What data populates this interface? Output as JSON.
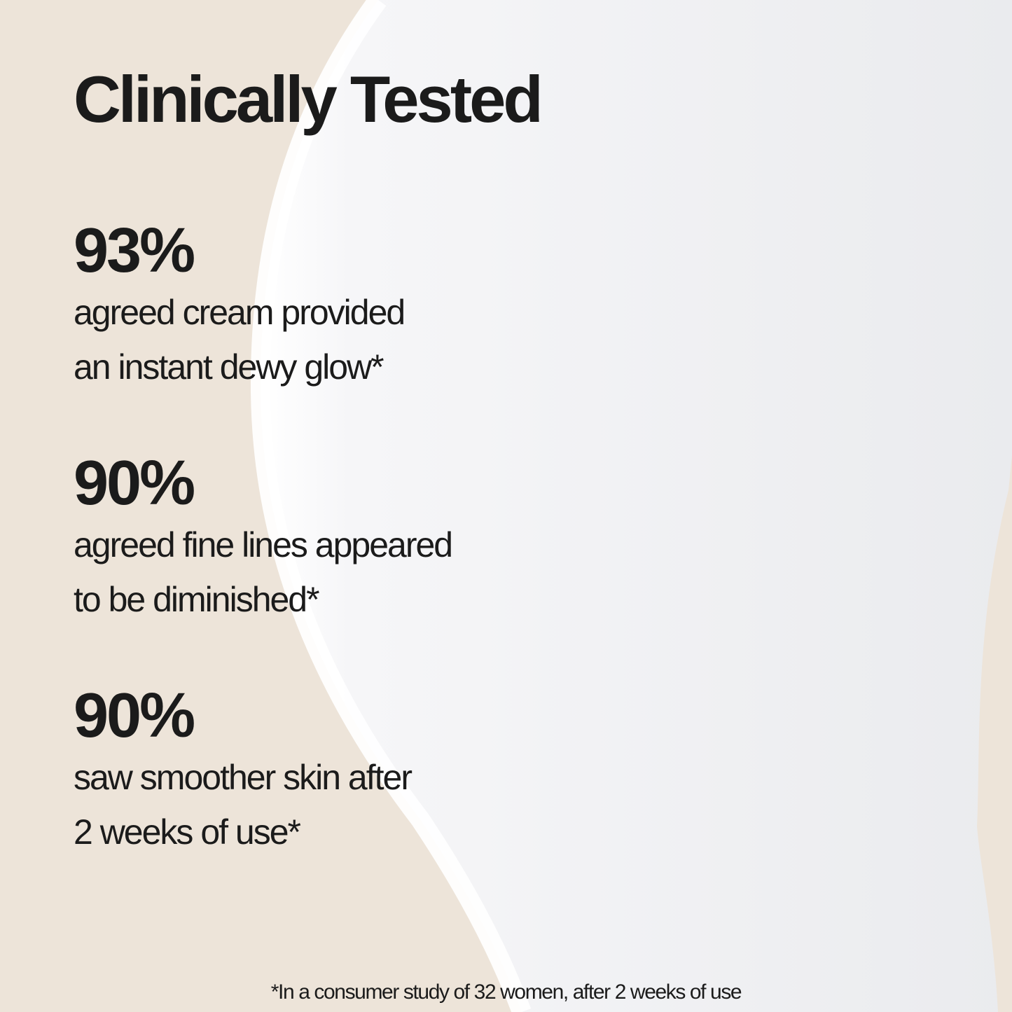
{
  "title": "Clinically Tested",
  "stats": [
    {
      "percent": "93%",
      "line1": "agreed cream provided",
      "line2": "an instant dewy glow*"
    },
    {
      "percent": "90%",
      "line1": "agreed fine lines appeared",
      "line2": "to be diminished*"
    },
    {
      "percent": "90%",
      "line1": "saw smoother skin after",
      "line2": "2 weeks of use*"
    }
  ],
  "footnote": "*In a consumer study of 32 women, after 2 weeks of use",
  "colors": {
    "background": "#ede4d9",
    "cream": "#eeeff1",
    "text": "#1b1b1b"
  }
}
